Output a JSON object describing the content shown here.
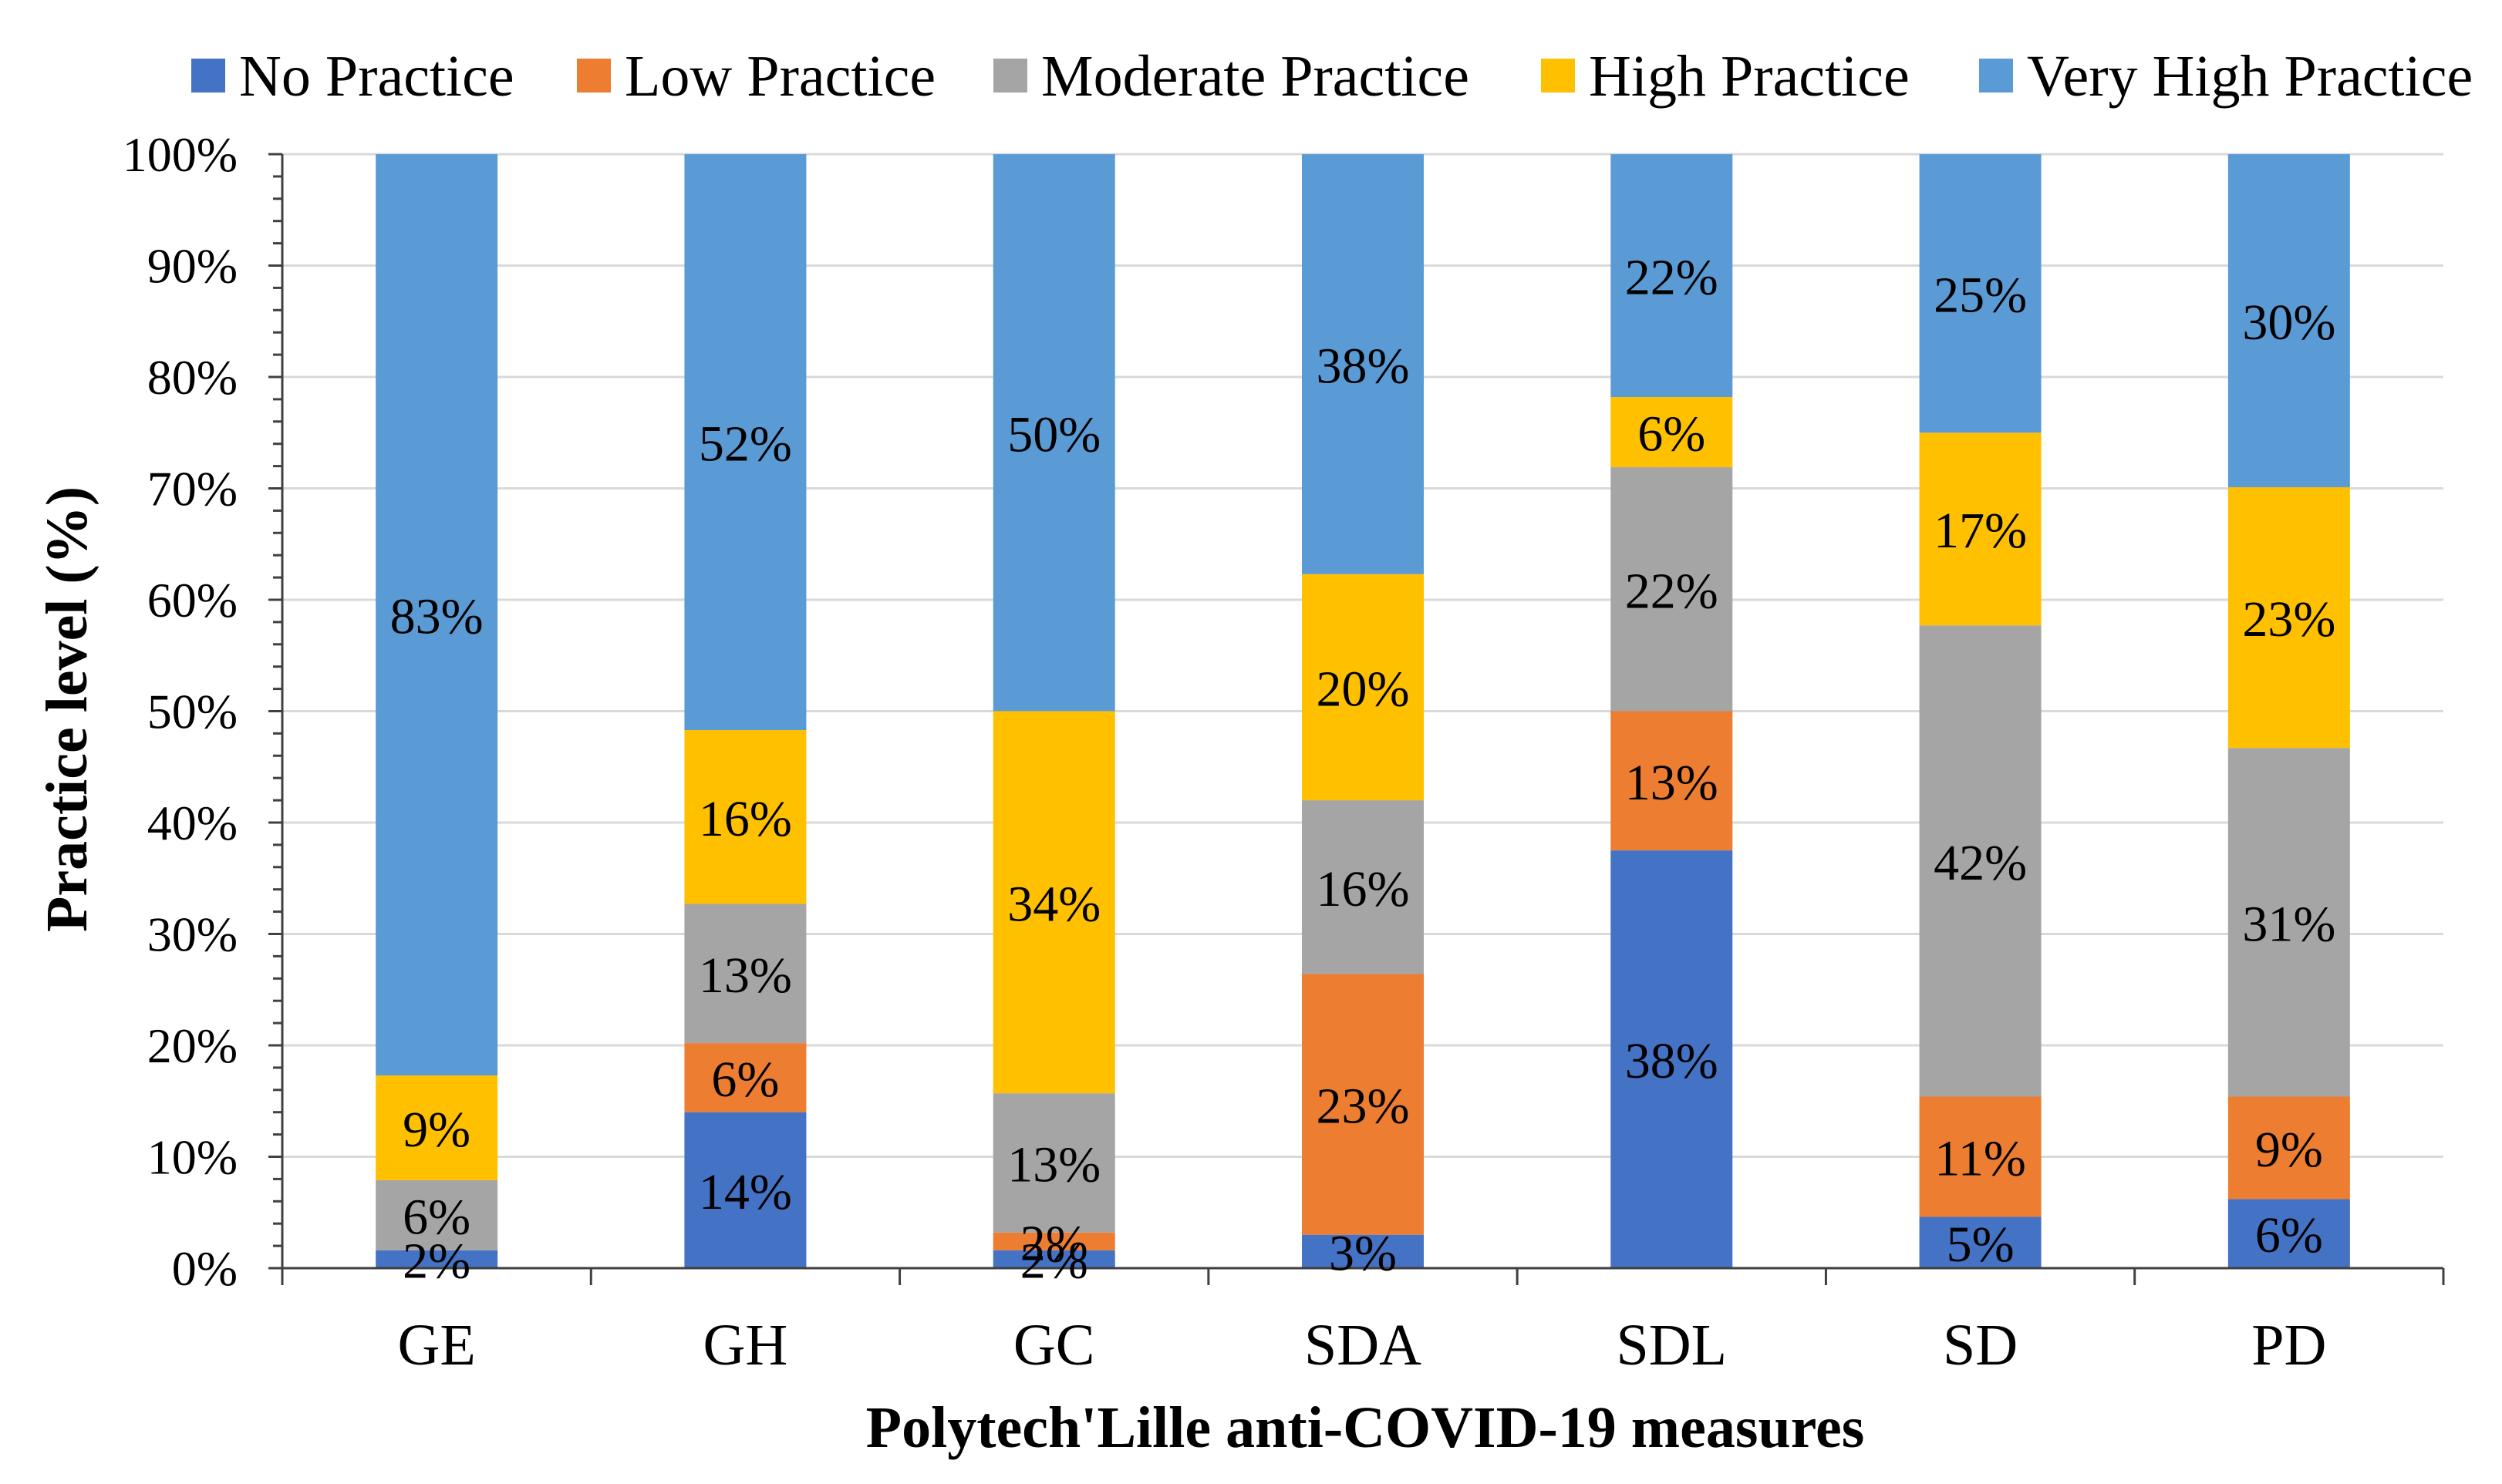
{
  "chart_data": {
    "type": "bar",
    "stacked": true,
    "title": "",
    "xlabel": "Polytech'Lille anti-COVID-19 measures",
    "ylabel": "Practice level (%)",
    "ylim": [
      0,
      100
    ],
    "y_ticks": [
      "0%",
      "10%",
      "20%",
      "30%",
      "40%",
      "50%",
      "60%",
      "70%",
      "80%",
      "90%",
      "100%"
    ],
    "grid": true,
    "legend_position": "top",
    "categories": [
      "GE",
      "GH",
      "GC",
      "SDA",
      "SDL",
      "SD",
      "PD"
    ],
    "series": [
      {
        "name": "No Practice",
        "color": "#4472C4",
        "values": [
          1.6,
          14,
          1.6,
          3,
          37.5,
          4.6,
          6.2
        ],
        "labels": [
          "2%",
          "14%",
          "2%",
          "3%",
          "38%",
          "5%",
          "6%"
        ]
      },
      {
        "name": "Low Practice",
        "color": "#ED7D31",
        "values": [
          0,
          6.2,
          1.6,
          23.4,
          12.5,
          10.8,
          9.2
        ],
        "labels": [
          "",
          "6%",
          "2%",
          "23%",
          "13%",
          "11%",
          "9%"
        ]
      },
      {
        "name": "Moderate Practice",
        "color": "#A5A5A5",
        "values": [
          6.3,
          12.5,
          12.5,
          15.6,
          21.9,
          42.3,
          31.3
        ],
        "labels": [
          "6%",
          "13%",
          "13%",
          "16%",
          "22%",
          "42%",
          "31%"
        ]
      },
      {
        "name": "High Practice",
        "color": "#FFC000",
        "values": [
          9.4,
          15.6,
          34.3,
          20.3,
          6.3,
          17.3,
          23.4
        ],
        "labels": [
          "9%",
          "16%",
          "34%",
          "20%",
          "6%",
          "17%",
          "23%"
        ]
      },
      {
        "name": "Very High Practice",
        "color": "#5B9BD5",
        "values": [
          82.7,
          51.7,
          50,
          37.7,
          21.8,
          25,
          29.9
        ],
        "labels": [
          "83%",
          "52%",
          "50%",
          "38%",
          "22%",
          "25%",
          "30%"
        ]
      }
    ]
  }
}
